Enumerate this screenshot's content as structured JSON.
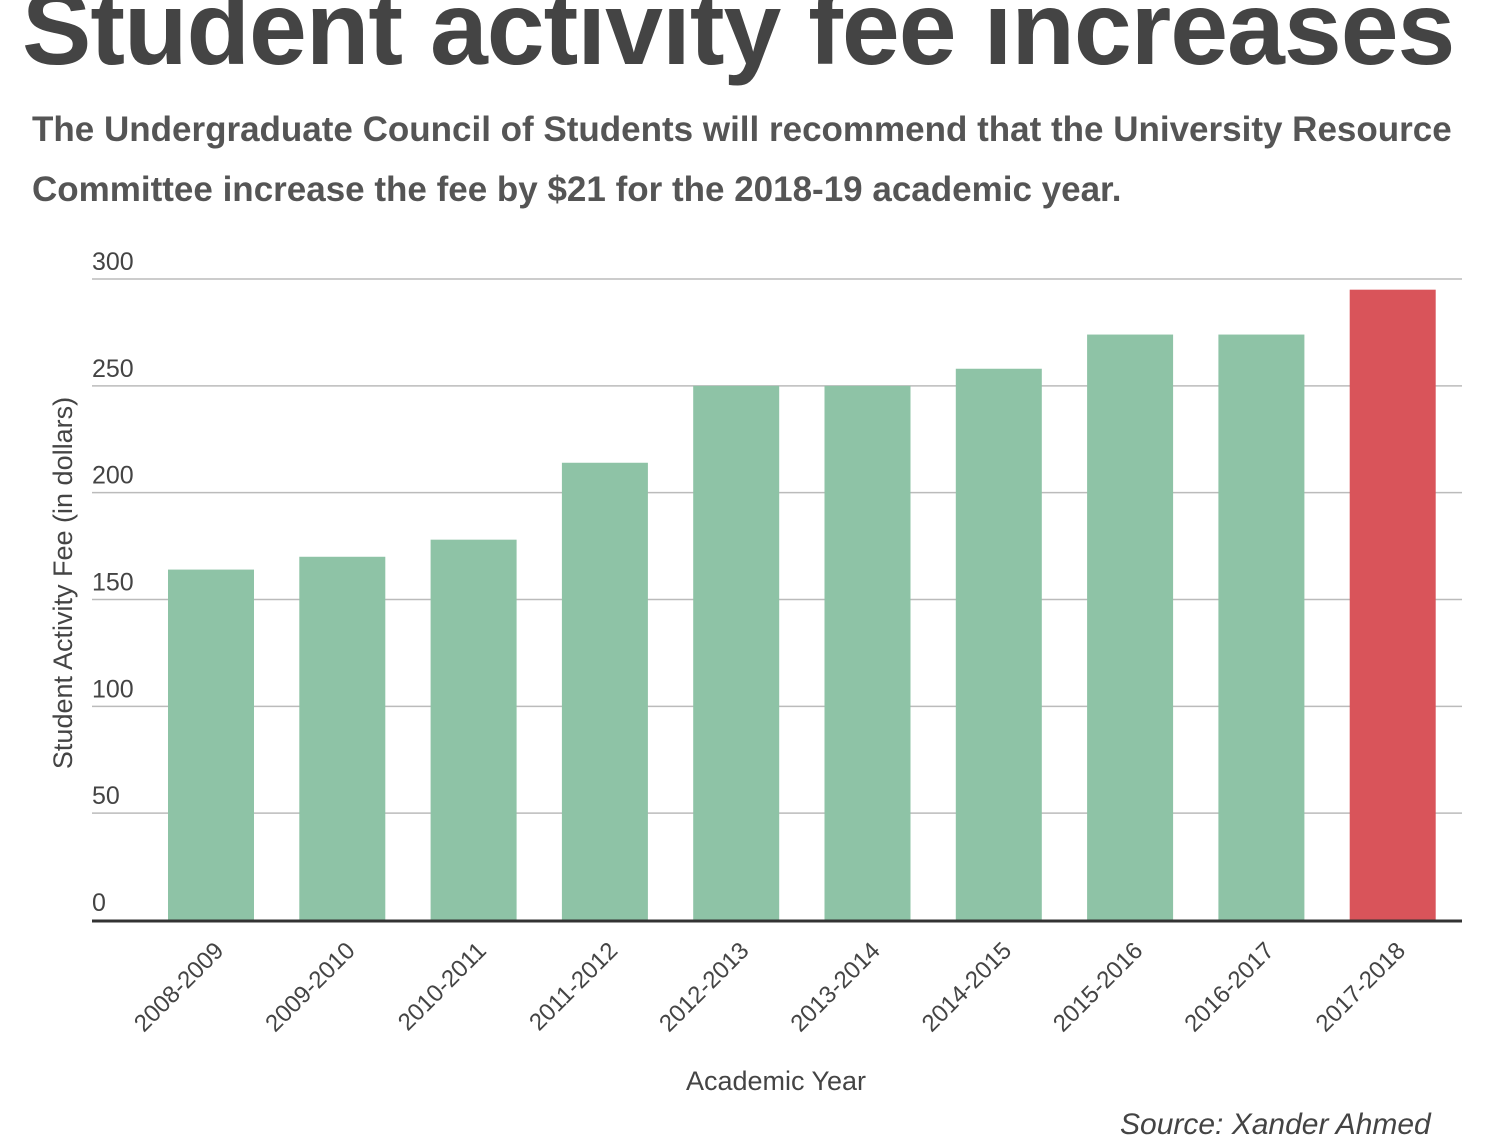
{
  "chart_data": {
    "type": "bar",
    "title": "Student activity fee increases",
    "subtitle": "The Undergraduate Council of Students will recommend that the University Resource Committee increase the fee by $21 for the 2018-19 academic year.",
    "xlabel": "Academic Year",
    "ylabel": "Student Activity Fee (in dollars)",
    "ylim": [
      0,
      300
    ],
    "yticks": [
      "0",
      "50",
      "100",
      "150",
      "200",
      "250",
      "300"
    ],
    "grid": true,
    "categories": [
      "2008-2009",
      "2009-2010",
      "2010-2011",
      "2011-2012",
      "2012-2013",
      "2013-2014",
      "2014-2015",
      "2015-2016",
      "2016-2017",
      "2017-2018"
    ],
    "values": [
      164,
      170,
      178,
      214,
      250,
      250,
      258,
      274,
      274,
      295
    ],
    "colors": {
      "default": "#8ec3a6",
      "highlight": "#d9545a",
      "highlight_category": "2017-2018",
      "grid": "#bbbbbb",
      "baseline": "#333333"
    }
  },
  "credit": "Source: Xander Ahmed"
}
